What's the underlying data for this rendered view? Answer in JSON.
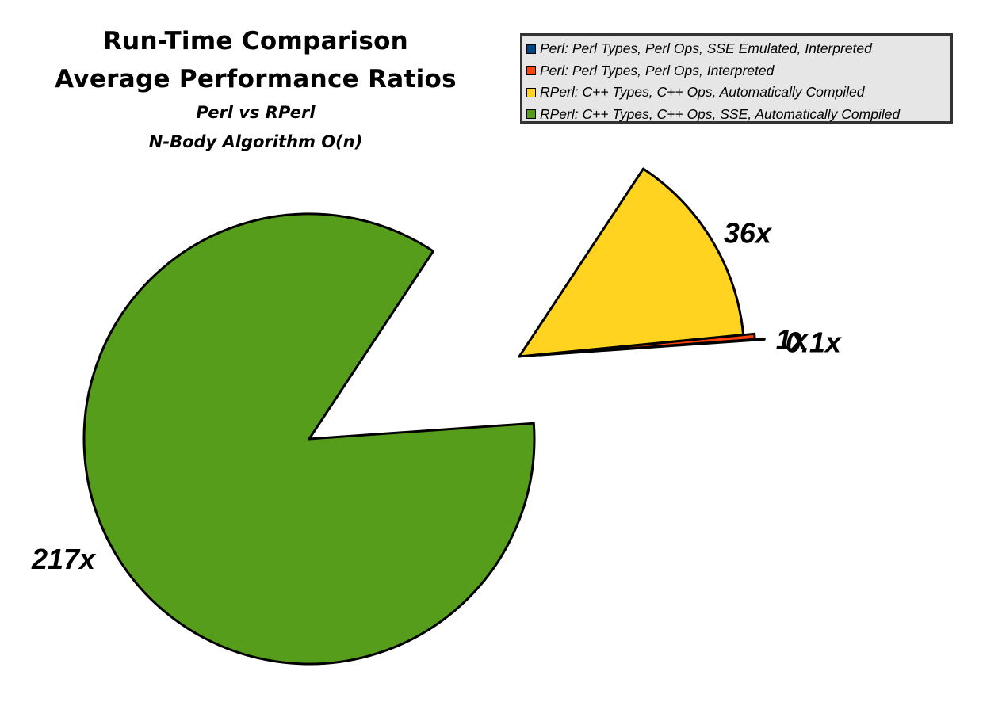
{
  "chart_data": {
    "type": "pie",
    "title": [
      "Run-Time Comparison",
      "Average Performance Ratios"
    ],
    "subtitle": [
      "Perl vs RPerl",
      "N-Body Algorithm O(n)"
    ],
    "legend_position": "top-right",
    "series": [
      {
        "name": "Perl: Perl Types, Perl Ops, SSE Emulated,  Interpreted",
        "value": 0.1,
        "label": "0.1x",
        "color": "#004586"
      },
      {
        "name": "Perl: Perl Types, Perl Ops, Interpreted",
        "value": 1,
        "label": "1x",
        "color": "#ff420e"
      },
      {
        "name": "RPerl: C++ Types, C++ Ops, Automatically Compiled",
        "value": 36,
        "label": "36x",
        "color": "#ffd320"
      },
      {
        "name": "RPerl: C++ Types, C++ Ops, SSE, Automatically Compiled",
        "value": 217,
        "label": "217x",
        "color": "#579d1c"
      }
    ]
  }
}
